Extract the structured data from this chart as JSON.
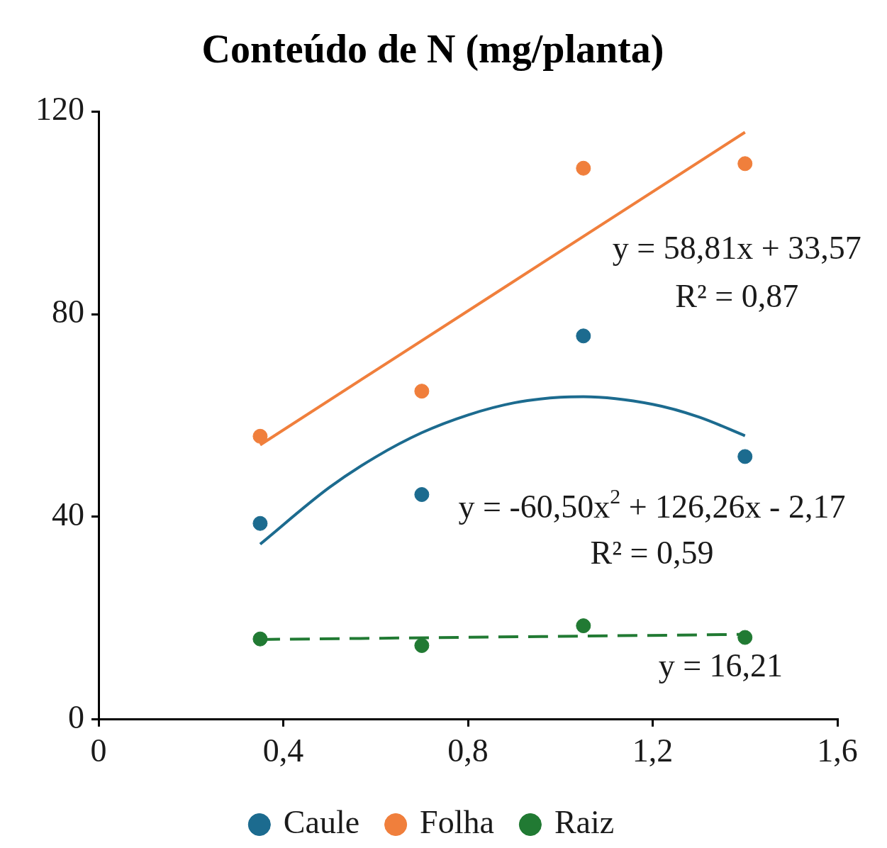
{
  "chart_data": {
    "type": "scatter",
    "title": "Conteúdo de N (mg/planta)",
    "xlim": [
      0,
      1.6
    ],
    "xticks": [
      0,
      {
        "value": 0.4,
        "label": "0,4"
      },
      {
        "value": 0.8,
        "label": "0,8"
      },
      {
        "value": 1.2,
        "label": "1,2"
      },
      {
        "value": 1.6,
        "label": "1,6"
      }
    ],
    "ylim": [
      0,
      120
    ],
    "yticks": [
      0,
      40,
      80,
      120
    ],
    "grid": false,
    "legend": "bottom",
    "marker": "circle",
    "series": [
      {
        "name": "Caule",
        "color": "#1c6b8f",
        "x": [
          0.35,
          0.7,
          1.05,
          1.4
        ],
        "values": [
          38.7,
          44.4,
          75.7,
          51.9
        ]
      },
      {
        "name": "Folha",
        "color": "#f07f3c",
        "x": [
          0.35,
          0.7,
          1.05,
          1.4
        ],
        "values": [
          55.9,
          64.8,
          108.8,
          109.7
        ]
      },
      {
        "name": "Raiz",
        "color": "#217a33",
        "x": [
          0.35,
          0.7,
          1.05,
          1.4
        ],
        "values": [
          15.9,
          14.6,
          18.5,
          16.2
        ]
      },
      {
        "type": "line",
        "color": "#1c6b8f",
        "marker": "none",
        "line_style": "solid",
        "x": [
          0.35,
          0.5,
          0.6,
          0.7,
          0.8,
          0.9,
          1.0,
          1.05,
          1.2,
          1.3,
          1.4
        ],
        "values": [
          34.6,
          45.8,
          51.8,
          56.6,
          60.1,
          62.5,
          63.6,
          63.7,
          62.2,
          59.7,
          56.0
        ]
      },
      {
        "type": "line",
        "color": "#f07f3c",
        "marker": "none",
        "line_style": "solid",
        "x": [
          0.35,
          1.4
        ],
        "values": [
          54.2,
          115.9
        ]
      },
      {
        "type": "line",
        "color": "#217a33",
        "marker": "none",
        "line_style": "dashed",
        "x": [
          0.35,
          1.4
        ],
        "values": [
          15.8,
          16.8
        ]
      }
    ],
    "annotations": [
      "y = 58,81x + 33,57",
      "R² = 0,87",
      "y = -60,50x$^{2}$ + 126,26x - 2,17",
      "R² = 0,59",
      "y = 16,21"
    ]
  }
}
